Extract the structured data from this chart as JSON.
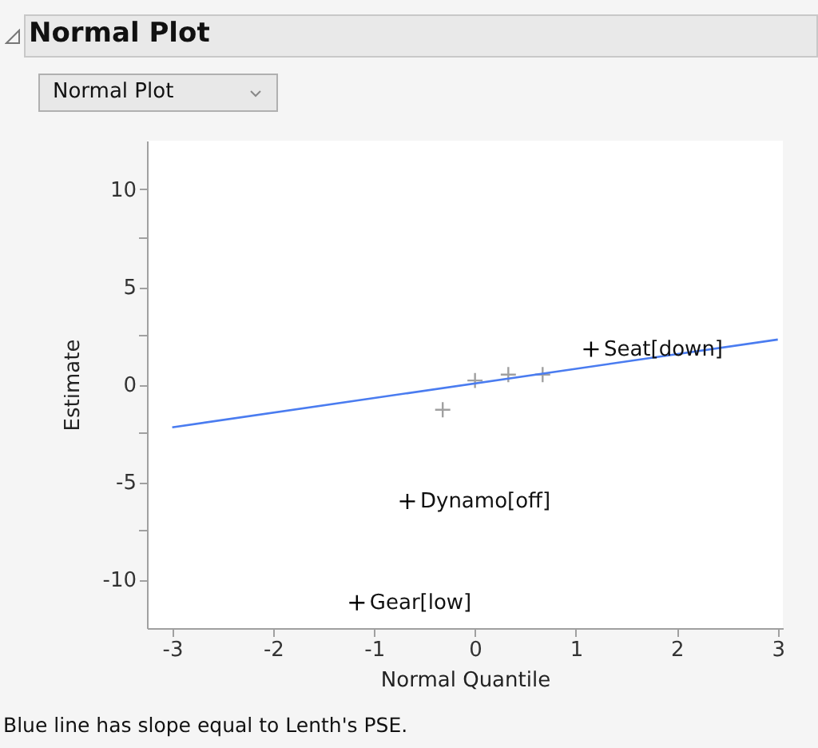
{
  "chart_data": {
    "type": "scatter",
    "title": "Normal Plot",
    "subtitle": "Normal Plot",
    "xlabel": "Normal Quantile",
    "ylabel": "Estimate",
    "xlim": [
      -3.25,
      3.05
    ],
    "xticks": [
      -3,
      -2,
      -1,
      0,
      1,
      2,
      3
    ],
    "ylim": [
      -12.5,
      12.5
    ],
    "yticks": [
      -10,
      {
        "value": -7.5,
        "label": null
      },
      -5,
      {
        "value": -2.5,
        "label": null
      },
      0,
      {
        "value": 2.5,
        "label": null
      },
      5,
      {
        "value": 7.5,
        "label": null
      },
      10
    ],
    "grid": false,
    "series": [
      {
        "color": "#000000",
        "marker": "cross",
        "x": [
          -1.17,
          -0.67,
          1.15
        ],
        "values": [
          -11.2,
          -6.0,
          1.8
        ]
      },
      {
        "color": "#a0a0a0",
        "marker": "cross",
        "x": [
          -0.32,
          0,
          0.33,
          0.67
        ],
        "values": [
          -1.3,
          0.2,
          0.5,
          0.5
        ]
      },
      {
        "type": "line",
        "marker": "none",
        "color": "#4a7cf0",
        "x": [
          -3,
          3
        ],
        "values": [
          -2.2,
          2.3
        ]
      }
    ],
    "annotations": [
      {
        "text": "Gear[low]",
        "x": -1.17,
        "y": -11.2
      },
      {
        "text": "Dynamo[off]",
        "x": -0.67,
        "y": -6.0
      },
      {
        "text": "Seat[down]",
        "x": 1.15,
        "y": 1.8
      },
      "Blue line has slope equal to Lenth's PSE."
    ]
  }
}
